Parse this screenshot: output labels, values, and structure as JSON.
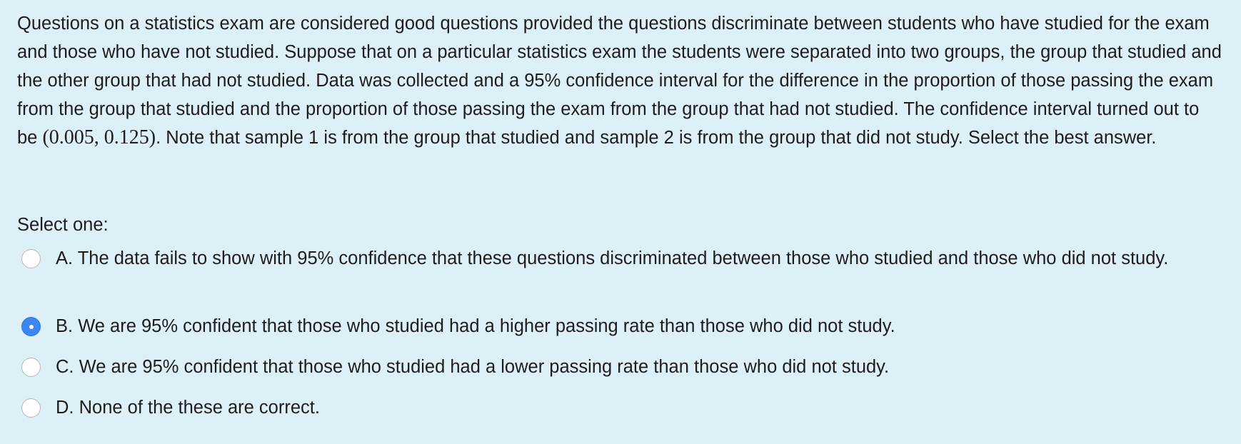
{
  "question": {
    "text_before": "Questions on a statistics exam are considered good questions provided the questions discriminate between students who have studied for the exam and those who have not studied. Suppose that on a particular statistics exam the students were separated into two groups, the group that studied and the other group that had not studied. Data was collected and a 95% confidence interval for the difference in the proportion of those passing the exam from the group that studied and the proportion of those passing the exam from the group that had not studied. The confidence interval turned out to be",
    "math": "(0.005, 0.125)",
    "text_after": ". Note that sample 1 is from the group that studied and sample 2 is from the group that did not study. Select the best answer."
  },
  "prompt": "Select one:",
  "options": [
    {
      "letter": "A.",
      "text": "The data fails to show with 95% confidence that these questions discriminated between those who studied and those who did not study."
    },
    {
      "letter": "B.",
      "text": "We are 95% confident that those who studied had a higher passing rate than those who did not study."
    },
    {
      "letter": "C.",
      "text": "We are 95% confident that those who studied had a lower passing rate than those who did not study."
    },
    {
      "letter": "D.",
      "text": "None of the these are correct."
    }
  ]
}
